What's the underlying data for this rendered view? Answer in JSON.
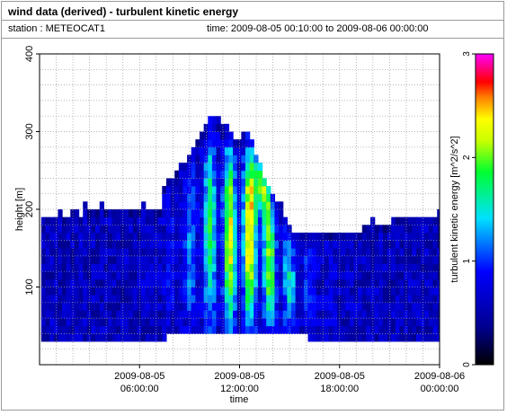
{
  "header": {
    "title": "wind data (derived) - turbulent kinetic energy",
    "station": "station : METEOCAT1",
    "time_range": "time: 2009-08-05 00:10:00 to 2009-08-06 00:00:00"
  },
  "chart_data": {
    "type": "heatmap",
    "xlabel": "time",
    "ylabel": "height [m]",
    "colorbar_label": "turbulent kinetic energy [m^2/s^2]",
    "x_range_hours": [
      0,
      24
    ],
    "ylim": [
      0,
      400
    ],
    "clim": [
      0,
      3
    ],
    "colormap": "jet-like (black→blue→cyan→green→yellow→red→magenta)",
    "background": "white",
    "grid": "dotted",
    "x_ticks": [
      {
        "hours": 6,
        "line1": "2009-08-05",
        "line2": "06:00:00"
      },
      {
        "hours": 12,
        "line1": "2009-08-05",
        "line2": "12:00:00"
      },
      {
        "hours": 18,
        "line1": "2009-08-05",
        "line2": "18:00:00"
      },
      {
        "hours": 24,
        "line1": "2009-08-06",
        "line2": "00:00:00"
      }
    ],
    "y_ticks": [
      {
        "value": 100,
        "label": "100"
      },
      {
        "value": 200,
        "label": "200"
      },
      {
        "value": 300,
        "label": "300"
      },
      {
        "value": 400,
        "label": "400"
      }
    ],
    "colorbar_ticks": [
      {
        "value": 0,
        "label": "0"
      },
      {
        "value": 1,
        "label": "1"
      },
      {
        "value": 2,
        "label": "2"
      },
      {
        "value": 3,
        "label": "3"
      }
    ],
    "approx_profile_tops_m": [
      {
        "t_hours": 0.2,
        "top_m": 185
      },
      {
        "t_hours": 2.6,
        "top_m": 195
      },
      {
        "t_hours": 7.0,
        "top_m": 195
      },
      {
        "t_hours": 7.6,
        "top_m": 235
      },
      {
        "t_hours": 9.0,
        "top_m": 275
      },
      {
        "t_hours": 10.3,
        "top_m": 325
      },
      {
        "t_hours": 11.5,
        "top_m": 295
      },
      {
        "t_hours": 12.6,
        "top_m": 285
      },
      {
        "t_hours": 13.6,
        "top_m": 225
      },
      {
        "t_hours": 15.0,
        "top_m": 175
      },
      {
        "t_hours": 16.5,
        "top_m": 165
      },
      {
        "t_hours": 18.5,
        "top_m": 170
      },
      {
        "t_hours": 21.0,
        "top_m": 185
      },
      {
        "t_hours": 24.0,
        "top_m": 185
      }
    ],
    "peak_tke_m2s2": {
      "t_hours": 13.2,
      "height_m": 230,
      "value": 2.6
    }
  }
}
